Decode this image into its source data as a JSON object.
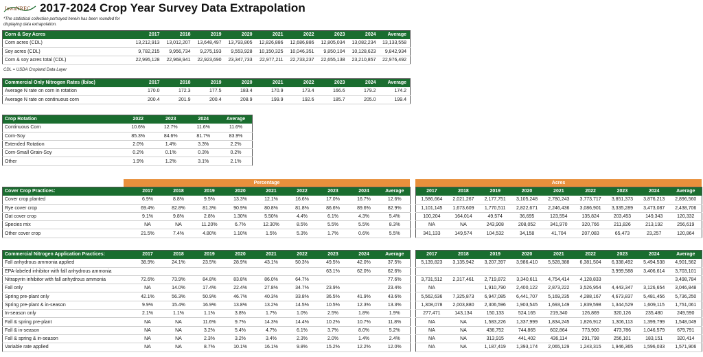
{
  "header": {
    "logo_text": "IowaNREC",
    "title": "2017-2024 Crop Year Survey Data Extrapolation",
    "note_rounding": "*The statistical collection portrayed herein has been rounded for displaying data extrapolation.",
    "note_cdl": "CDL = USDA Cropland Data Layer"
  },
  "bands": {
    "percentage": "Percentage",
    "acres": "Acres"
  },
  "corn_soy": {
    "title": "Corn & Soy Acres",
    "columns": [
      "2017",
      "2018",
      "2019",
      "2020",
      "2021",
      "2022",
      "2023",
      "2024",
      "Average"
    ],
    "rows": [
      {
        "label": "Corn acres (CDL)",
        "values": [
          "13,212,913",
          "13,012,207",
          "13,648,497",
          "13,793,805",
          "12,826,886",
          "12,686,886",
          "12,805,034",
          "13,082,234",
          "13,133,558"
        ]
      },
      {
        "label": "Soy acres (CDL)",
        "values": [
          "9,782,215",
          "9,956,734",
          "9,275,193",
          "9,553,928",
          "10,150,325",
          "10,046,351",
          "9,850,104",
          "10,128,623",
          "9,842,934"
        ]
      },
      {
        "label": "Corn & soy acres total (CDL)",
        "values": [
          "22,995,128",
          "22,968,941",
          "22,923,690",
          "23,347,733",
          "22,977,211",
          "22,733,237",
          "22,655,138",
          "23,210,857",
          "22,976,492"
        ]
      }
    ]
  },
  "nitrogen_rates": {
    "title": "Commercial Only Nitrogen Rates (lb/ac)",
    "columns": [
      "2017",
      "2018",
      "2019",
      "2020",
      "2021",
      "2022",
      "2023",
      "2024",
      "Average"
    ],
    "rows": [
      {
        "label": "Average N rate on corn in rotation",
        "values": [
          "170.0",
          "172.3",
          "177.5",
          "183.4",
          "170.9",
          "173.4",
          "166.6",
          "179.2",
          "174.2"
        ]
      },
      {
        "label": "Average N rate on continuous corn",
        "values": [
          "200.4",
          "201.9",
          "200.4",
          "208.9",
          "199.9",
          "192.6",
          "185.7",
          "205.0",
          "199.4"
        ]
      }
    ]
  },
  "crop_rotation": {
    "title": "Crop Rotation",
    "columns": [
      "2022",
      "2023",
      "2024",
      "Average"
    ],
    "rows": [
      {
        "label": "Continuous Corn",
        "values": [
          "10.6%",
          "12.7%",
          "11.6%",
          "11.6%"
        ]
      },
      {
        "label": "Corn-Soy",
        "values": [
          "85.3%",
          "84.6%",
          "81.7%",
          "83.9%"
        ]
      },
      {
        "label": "Extended Rotation",
        "values": [
          "2.0%",
          "1.4%",
          "3.3%",
          "2.2%"
        ]
      },
      {
        "label": "Corn-Small Grain-Soy",
        "values": [
          "0.2%",
          "0.1%",
          "0.3%",
          "0.2%"
        ]
      },
      {
        "label": "Other",
        "values": [
          "1.9%",
          "1.2%",
          "3.1%",
          "2.1%"
        ]
      }
    ]
  },
  "cover_crop": {
    "title": "Cover Crop Practices:",
    "columns": [
      "2017",
      "2018",
      "2019",
      "2020",
      "2021",
      "2022",
      "2023",
      "2024",
      "Average"
    ],
    "rows": [
      {
        "label": "Cover crop planted",
        "values": [
          "6.9%",
          "8.8%",
          "9.5%",
          "13.3%",
          "12.1%",
          "16.6%",
          "17.0%",
          "16.7%",
          "12.6%"
        ]
      },
      {
        "label": "Rye cover crop",
        "values": [
          "69.4%",
          "82.8%",
          "81.3%",
          "90.9%",
          "80.8%",
          "81.8%",
          "86.6%",
          "89.6%",
          "82.9%"
        ]
      },
      {
        "label": "Oat cover crop",
        "values": [
          "9.1%",
          "9.8%",
          "2.8%",
          "1.30%",
          "5.50%",
          "4.4%",
          "6.1%",
          "4.3%",
          "5.4%"
        ]
      },
      {
        "label": "Species mix",
        "values": [
          "NA",
          "NA",
          "11.20%",
          "6.7%",
          "12.30%",
          "8.5%",
          "5.5%",
          "5.5%",
          "8.3%"
        ]
      },
      {
        "label": "Other cover crop",
        "values": [
          "21.5%",
          "7.4%",
          "4.80%",
          "1.10%",
          "1.5%",
          "5.3%",
          "1.7%",
          "0.6%",
          "5.5%"
        ]
      }
    ],
    "acres_columns": [
      "2017",
      "2018",
      "2019",
      "2020",
      "2021",
      "2022",
      "2023",
      "2024",
      "Average"
    ],
    "acres_rows": [
      [
        "1,586,664",
        "2,021,267",
        "2,177,751",
        "3,105,248",
        "2,780,243",
        "3,773,717",
        "3,851,373",
        "3,876,213",
        "2,896,560"
      ],
      [
        "1,101,145",
        "1,673,609",
        "1,770,511",
        "2,822,671",
        "2,246,436",
        "3,086,901",
        "3,335,289",
        "3,473,087",
        "2,438,706"
      ],
      [
        "100,204",
        "164,014",
        "49,574",
        "36,695",
        "123,554",
        "135,824",
        "203,453",
        "149,343",
        "120,332"
      ],
      [
        "NA",
        "NA",
        "243,908",
        "208,052",
        "341,970",
        "320,766",
        "211,826",
        "213,192",
        "256,619"
      ],
      [
        "341,133",
        "149,574",
        "104,532",
        "34,158",
        "41,704",
        "207,083",
        "65,473",
        "23,257",
        "120,864"
      ]
    ]
  },
  "n_application": {
    "title": "Commercial Nitrogen Application Practices:",
    "columns": [
      "2017",
      "2018",
      "2019",
      "2020",
      "2021",
      "2022",
      "2023",
      "2024",
      "Average"
    ],
    "rows": [
      {
        "label": "Fall anhydrous ammonia applied",
        "values": [
          "38.9%",
          "24.1%",
          "23.5%",
          "28.9%",
          "43.1%",
          "50.3%",
          "49.5%",
          "42.0%",
          "37.5%"
        ]
      },
      {
        "label": "EPA-labeled inhibitor with fall anhydrous ammonia",
        "values": [
          "",
          "",
          "",
          "",
          "",
          "",
          "63.1%",
          "62.0%",
          "62.6%"
        ]
      },
      {
        "label": "Nitrapyrin inhibitor with fall anhydrous ammonia",
        "values": [
          "72.6%",
          "73.9%",
          "84.8%",
          "83.8%",
          "86.0%",
          "64.7%",
          "",
          "",
          "77.6%"
        ]
      },
      {
        "label": "Fall only",
        "values": [
          "NA",
          "14.0%",
          "17.4%",
          "22.4%",
          "27.8%",
          "34.7%",
          "23.9%",
          "",
          "23.4%"
        ]
      },
      {
        "label": "Spring pre-plant only",
        "values": [
          "42.1%",
          "56.3%",
          "50.9%",
          "46.7%",
          "40.3%",
          "33.8%",
          "36.5%",
          "41.9%",
          "43.6%"
        ]
      },
      {
        "label": "Spring pre-plant & in-season",
        "values": [
          "9.9%",
          "15.4%",
          "16.9%",
          "13.8%",
          "13.2%",
          "14.5%",
          "10.5%",
          "12.3%",
          "13.3%"
        ]
      },
      {
        "label": "In-season only",
        "values": [
          "2.1%",
          "1.1%",
          "1.1%",
          "3.8%",
          "1.7%",
          "1.0%",
          "2.5%",
          "1.8%",
          "1.9%"
        ]
      },
      {
        "label": "Fall & spring pre-plant",
        "values": [
          "NA",
          "NA",
          "11.6%",
          "9.7%",
          "14.3%",
          "14.4%",
          "10.2%",
          "10.7%",
          "11.8%"
        ]
      },
      {
        "label": "Fall & in-season",
        "values": [
          "NA",
          "NA",
          "3.2%",
          "5.4%",
          "4.7%",
          "6.1%",
          "3.7%",
          "8.0%",
          "5.2%"
        ]
      },
      {
        "label": "Fall & spring & in-season",
        "values": [
          "NA",
          "NA",
          "2.3%",
          "3.2%",
          "3.4%",
          "2.3%",
          "2.0%",
          "1.4%",
          "2.4%"
        ]
      },
      {
        "label": "Variable rate applied",
        "values": [
          "NA",
          "NA",
          "8.7%",
          "10.1%",
          "16.1%",
          "9.8%",
          "15.2%",
          "12.2%",
          "12.0%"
        ]
      }
    ],
    "acres_columns": [
      "2017",
      "2018",
      "2019",
      "2020",
      "2021",
      "2022",
      "2023",
      "2024",
      "Average"
    ],
    "acres_rows": [
      [
        "5,139,823",
        "3,135,942",
        "3,207,397",
        "3,986,410",
        "5,528,388",
        "6,381,504",
        "6,338,492",
        "5,494,538",
        "4,901,562"
      ],
      [
        "",
        "",
        "",
        "",
        "",
        "",
        "3,999,588",
        "3,406,614",
        "3,703,101"
      ],
      [
        "3,731,512",
        "2,317,461",
        "2,719,872",
        "3,340,611",
        "4,754,414",
        "4,128,833",
        "",
        "",
        "3,498,784"
      ],
      [
        "NA",
        "",
        "1,910,790",
        "2,400,122",
        "2,873,222",
        "3,526,954",
        "4,443,347",
        "3,126,654",
        "3,046,848"
      ],
      [
        "5,562,636",
        "7,325,873",
        "6,947,085",
        "6,441,707",
        "5,169,235",
        "4,288,167",
        "4,673,837",
        "5,481,456",
        "5,736,250"
      ],
      [
        "1,308,078",
        "2,003,880",
        "2,306,596",
        "1,903,545",
        "1,693,149",
        "1,839,598",
        "1,344,529",
        "1,609,115",
        "1,751,061"
      ],
      [
        "277,471",
        "143,134",
        "150,133",
        "524,165",
        "219,340",
        "126,869",
        "320,126",
        "235,480",
        "249,590"
      ],
      [
        "NA",
        "NA",
        "1,583,226",
        "1,337,999",
        "1,834,245",
        "1,826,912",
        "1,306,113",
        "1,399,799",
        "1,548,049"
      ],
      [
        "NA",
        "NA",
        "436,752",
        "744,865",
        "602,864",
        "773,900",
        "473,786",
        "1,046,579",
        "679,791"
      ],
      [
        "NA",
        "NA",
        "313,915",
        "441,402",
        "436,114",
        "291,798",
        "256,101",
        "183,151",
        "320,414"
      ],
      [
        "NA",
        "NA",
        "1,187,419",
        "1,393,174",
        "2,065,129",
        "1,243,315",
        "1,946,365",
        "1,596,033",
        "1,571,906"
      ]
    ]
  }
}
